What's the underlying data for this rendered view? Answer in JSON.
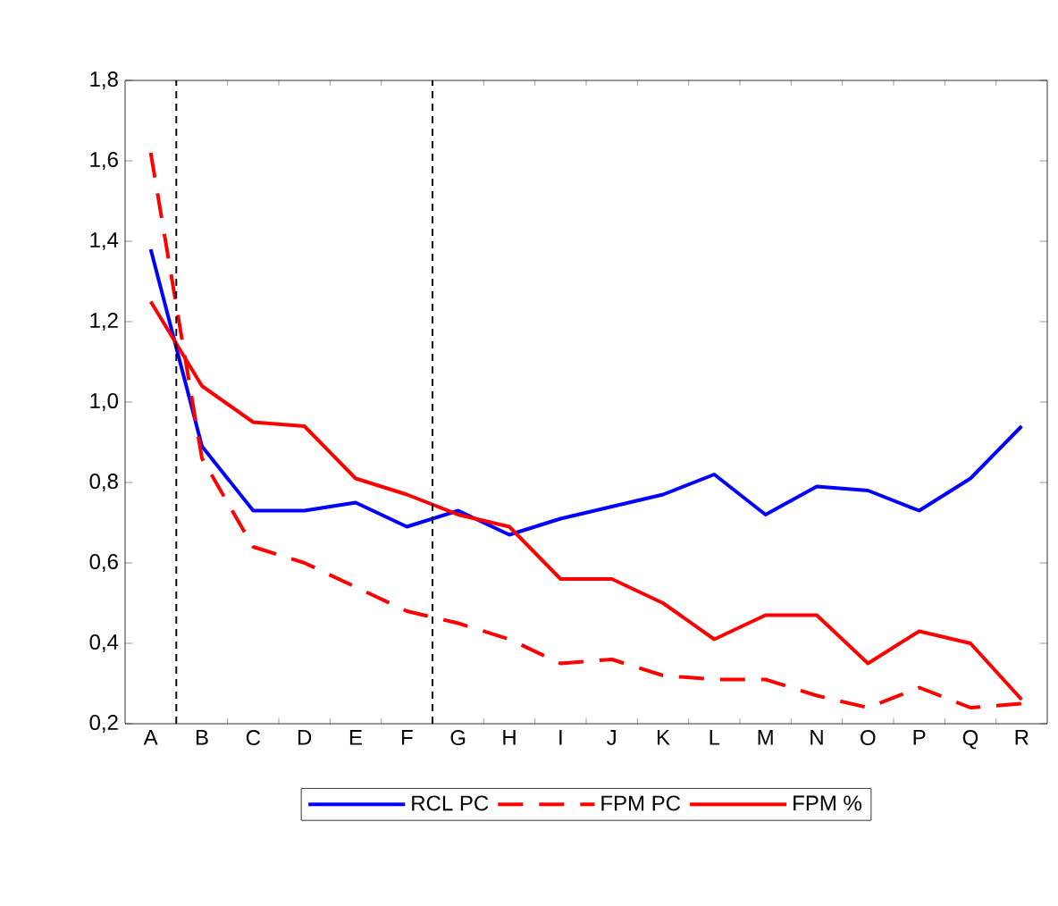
{
  "chart_data": {
    "type": "line",
    "categories": [
      "A",
      "B",
      "C",
      "D",
      "E",
      "F",
      "G",
      "H",
      "I",
      "J",
      "K",
      "L",
      "M",
      "N",
      "O",
      "P",
      "Q",
      "R"
    ],
    "series": [
      {
        "name": "RCL PC",
        "color": "#0000ff",
        "line_style": "solid",
        "values": [
          1.38,
          0.89,
          0.73,
          0.73,
          0.75,
          0.69,
          0.73,
          0.67,
          0.71,
          0.74,
          0.77,
          0.82,
          0.72,
          0.79,
          0.78,
          0.73,
          0.81,
          0.94
        ]
      },
      {
        "name": "FPM PC",
        "color": "#ff0000",
        "line_style": "dashed",
        "values": [
          1.62,
          0.86,
          0.64,
          0.6,
          0.54,
          0.48,
          0.45,
          0.41,
          0.35,
          0.36,
          0.32,
          0.31,
          0.31,
          0.27,
          0.24,
          0.29,
          0.24,
          0.25
        ]
      },
      {
        "name": "FPM %",
        "color": "#ff0000",
        "line_style": "solid",
        "values": [
          1.25,
          1.04,
          0.95,
          0.94,
          0.81,
          0.77,
          0.72,
          0.69,
          0.56,
          0.56,
          0.5,
          0.41,
          0.47,
          0.47,
          0.35,
          0.43,
          0.4,
          0.26
        ]
      }
    ],
    "ylim": [
      0.2,
      1.8
    ],
    "yticks": [
      {
        "value": 0.2,
        "label": "0,2"
      },
      {
        "value": 0.4,
        "label": "0,4"
      },
      {
        "value": 0.6,
        "label": "0,6"
      },
      {
        "value": 0.8,
        "label": "0,8"
      },
      {
        "value": 1.0,
        "label": "1,0"
      },
      {
        "value": 1.2,
        "label": "1,2"
      },
      {
        "value": 1.4,
        "label": "1,4"
      },
      {
        "value": 1.6,
        "label": "1,6"
      },
      {
        "value": 1.8,
        "label": "1,8"
      }
    ],
    "grid": false,
    "legend": "bottom",
    "marker": "none"
  }
}
